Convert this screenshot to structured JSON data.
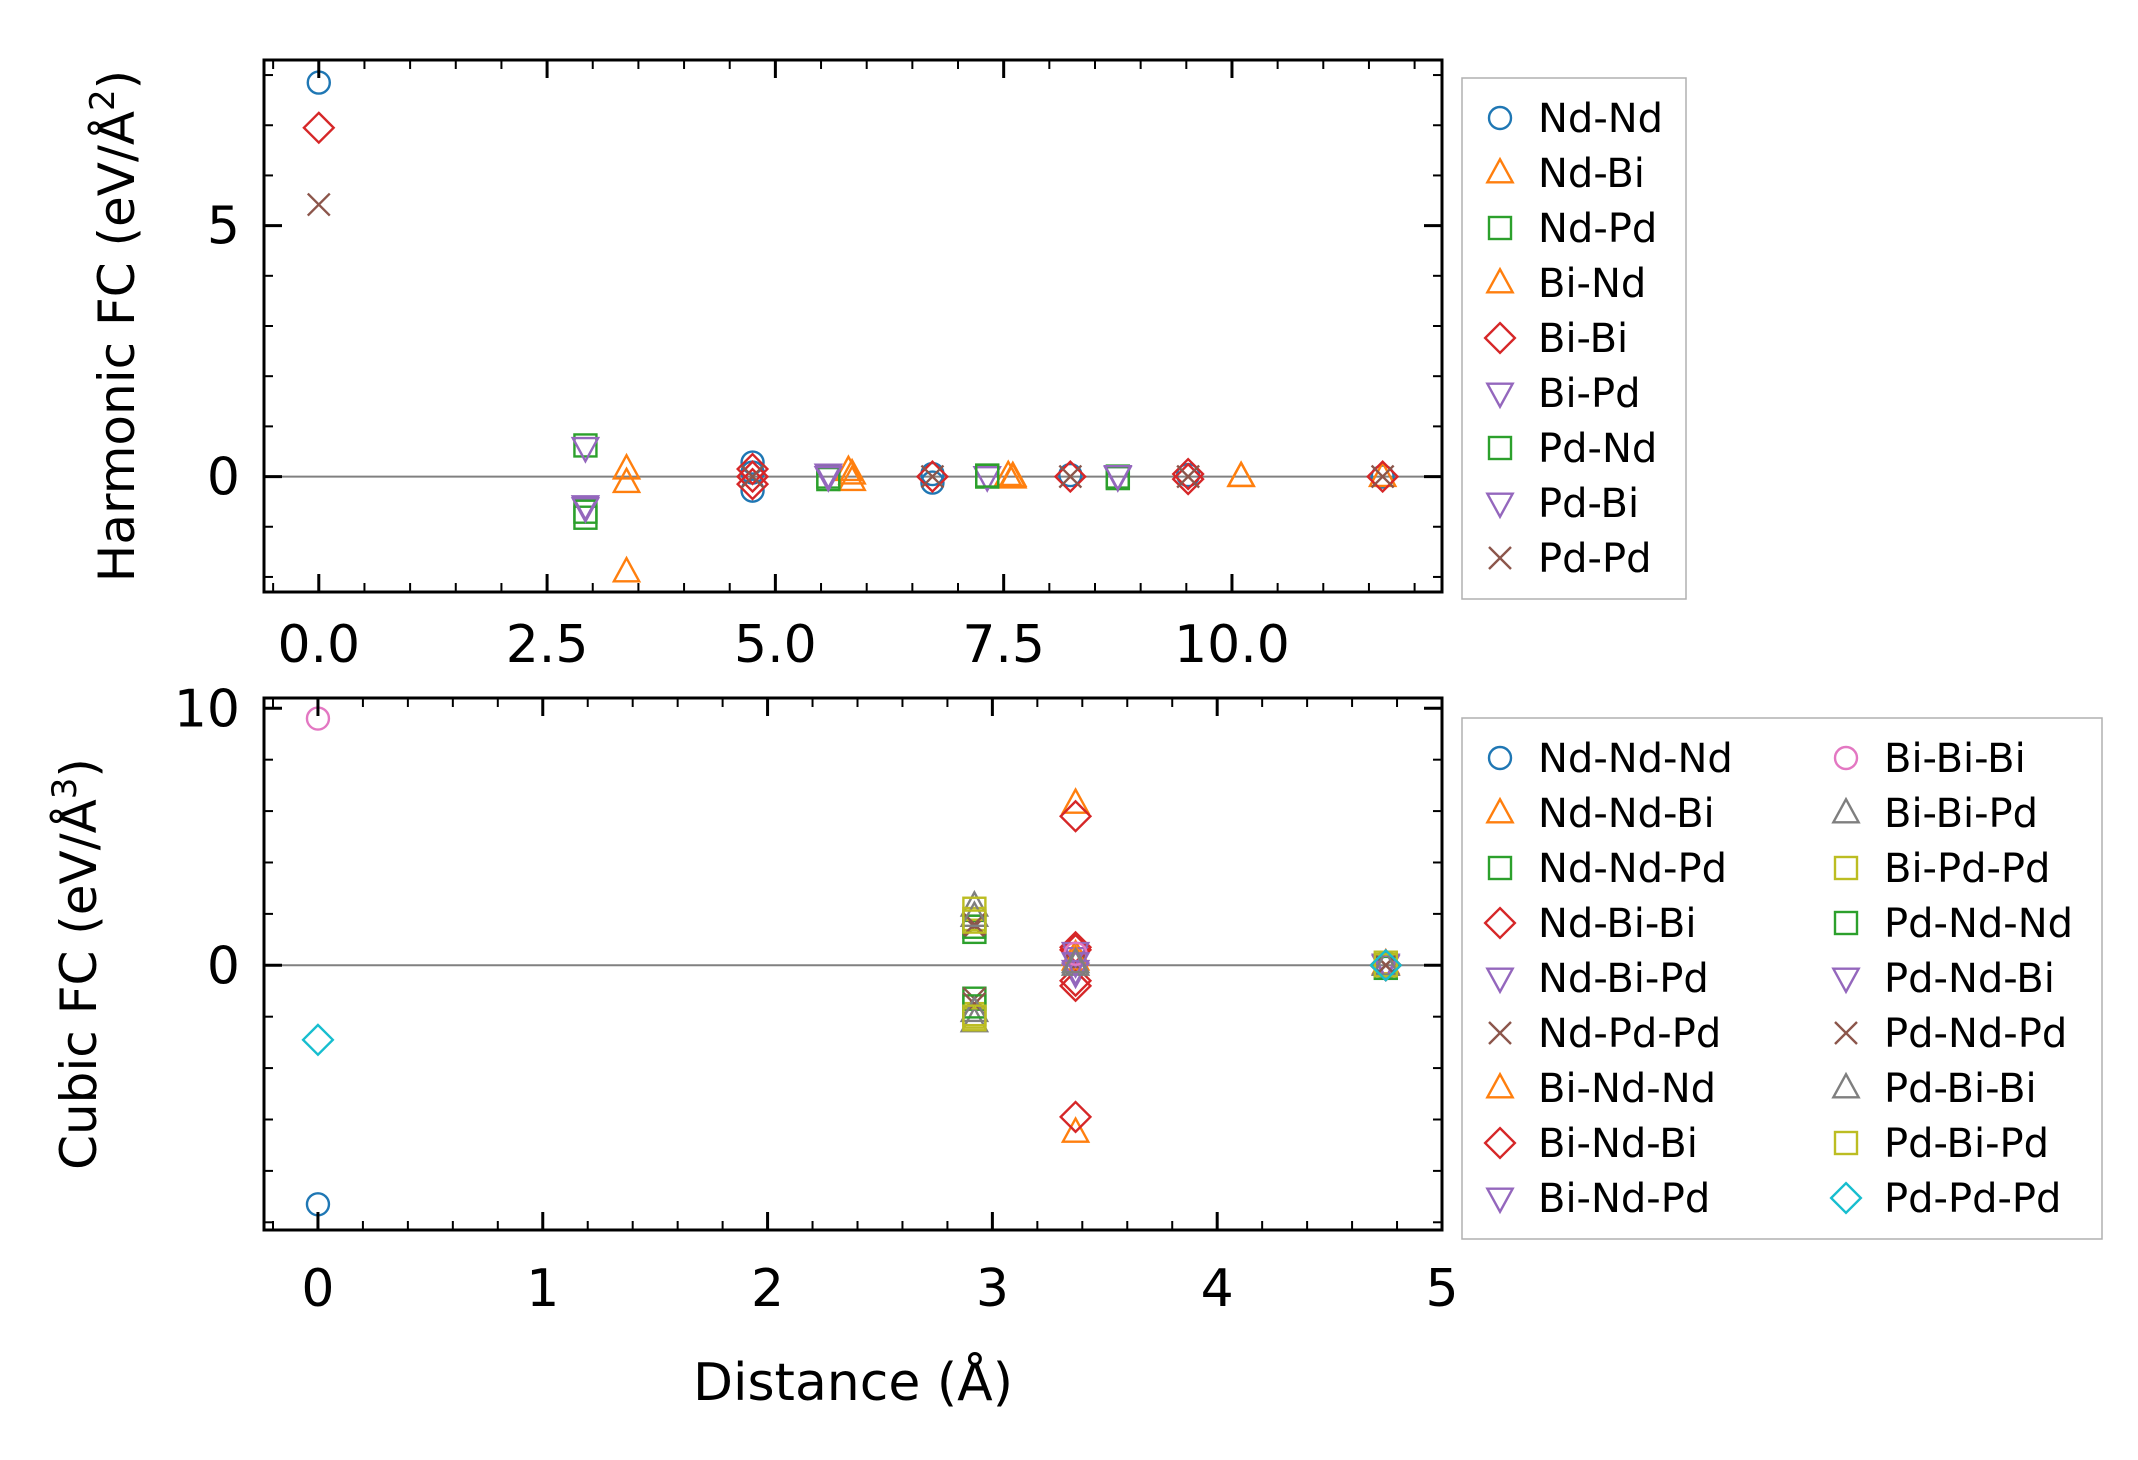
{
  "colors": {
    "blue": "#1f77b4",
    "orange": "#ff7f0e",
    "green": "#2ca02c",
    "red": "#d62728",
    "purple": "#9467bd",
    "brown": "#8c564b",
    "pink": "#e377c2",
    "gray": "#7f7f7f",
    "olive": "#bcbd22",
    "cyan": "#17becf"
  },
  "chart_data": [
    {
      "type": "scatter",
      "title": "",
      "xlabel": "",
      "ylabel": "Harmonic FC (eV/Å",
      "ylabel_exp": "2",
      "ylabel_close": ")",
      "xlim": [
        -0.6,
        12.3
      ],
      "ylim": [
        -2.3,
        8.3
      ],
      "xticks": [
        0.0,
        2.5,
        5.0,
        7.5,
        10.0
      ],
      "xtick_labels": [
        "0.0",
        "2.5",
        "5.0",
        "7.5",
        "10.0"
      ],
      "yticks": [
        0,
        5
      ],
      "ytick_labels": [
        "0",
        "5"
      ],
      "x_minor_step": 0.5,
      "y_minor_step": 1,
      "zero_line": true,
      "legend_position": "outside-right",
      "series": [
        {
          "name": "Nd-Nd",
          "marker": "circle",
          "color": "blue",
          "points": [
            [
              0,
              7.85
            ],
            [
              4.75,
              0.28
            ],
            [
              4.75,
              -0.28
            ],
            [
              4.75,
              0.08
            ],
            [
              6.72,
              -0.12
            ],
            [
              6.72,
              0.05
            ],
            [
              8.23,
              0.03
            ],
            [
              9.52,
              0.03
            ],
            [
              11.65,
              0.0
            ]
          ]
        },
        {
          "name": "Nd-Bi",
          "marker": "triangle-up",
          "color": "orange",
          "points": [
            [
              3.37,
              0.15
            ],
            [
              3.37,
              -0.12
            ],
            [
              5.8,
              0.12
            ],
            [
              5.84,
              -0.08
            ],
            [
              7.55,
              0.02
            ],
            [
              7.6,
              -0.03
            ],
            [
              10.1,
              0.0
            ],
            [
              11.65,
              0.0
            ]
          ]
        },
        {
          "name": "Nd-Pd",
          "marker": "square",
          "color": "green",
          "points": [
            [
              2.92,
              0.62
            ],
            [
              2.92,
              -0.82
            ],
            [
              5.58,
              0.0
            ],
            [
              7.32,
              0.0
            ],
            [
              8.75,
              0.0
            ]
          ]
        },
        {
          "name": "Bi-Nd",
          "marker": "triangle-up",
          "color": "orange",
          "points": [
            [
              3.37,
              -1.9
            ],
            [
              5.84,
              0.05
            ],
            [
              7.6,
              0.0
            ],
            [
              10.1,
              0.0
            ]
          ]
        },
        {
          "name": "Bi-Bi",
          "marker": "diamond",
          "color": "red",
          "points": [
            [
              0,
              6.95
            ],
            [
              4.75,
              0.15
            ],
            [
              4.75,
              -0.15
            ],
            [
              4.75,
              0.0
            ],
            [
              6.72,
              0.0
            ],
            [
              8.23,
              0.0
            ],
            [
              9.52,
              0.05
            ],
            [
              9.52,
              -0.05
            ],
            [
              11.65,
              0.0
            ]
          ]
        },
        {
          "name": "Bi-Pd",
          "marker": "triangle-down",
          "color": "purple",
          "points": [
            [
              2.92,
              0.58
            ],
            [
              2.92,
              -0.58
            ],
            [
              5.58,
              0.05
            ],
            [
              7.32,
              0.0
            ],
            [
              8.75,
              0.0
            ]
          ]
        },
        {
          "name": "Pd-Nd",
          "marker": "square",
          "color": "green",
          "points": [
            [
              2.92,
              -0.7
            ],
            [
              5.58,
              -0.05
            ],
            [
              7.32,
              0.02
            ],
            [
              8.75,
              -0.03
            ]
          ]
        },
        {
          "name": "Pd-Bi",
          "marker": "triangle-down",
          "color": "purple",
          "points": [
            [
              2.92,
              -0.62
            ],
            [
              5.58,
              0.0
            ],
            [
              8.75,
              0.02
            ]
          ]
        },
        {
          "name": "Pd-Pd",
          "marker": "x",
          "color": "brown",
          "points": [
            [
              0,
              5.42
            ],
            [
              4.75,
              0.0
            ],
            [
              6.72,
              0.0
            ],
            [
              8.23,
              0.0
            ],
            [
              9.52,
              0.0
            ],
            [
              11.65,
              0.0
            ]
          ]
        }
      ]
    },
    {
      "type": "scatter",
      "title": "",
      "xlabel": "Distance (Å)",
      "ylabel": "Cubic FC (eV/Å",
      "ylabel_exp": "3",
      "ylabel_close": ")",
      "xlim": [
        -0.24,
        5.0
      ],
      "ylim": [
        -10.3,
        10.4
      ],
      "xticks": [
        0,
        1,
        2,
        3,
        4,
        5
      ],
      "xtick_labels": [
        "0",
        "1",
        "2",
        "3",
        "4",
        "5"
      ],
      "yticks": [
        0,
        10
      ],
      "ytick_labels": [
        "0",
        "10"
      ],
      "x_minor_step": 0.2,
      "y_minor_step": 2,
      "zero_line": true,
      "legend_position": "outside-right",
      "series": [
        {
          "name": "Nd-Nd-Nd",
          "marker": "circle",
          "color": "blue",
          "points": [
            [
              0,
              -9.3
            ],
            [
              4.75,
              0.1
            ],
            [
              4.75,
              -0.1
            ]
          ]
        },
        {
          "name": "Nd-Nd-Bi",
          "marker": "triangle-up",
          "color": "orange",
          "points": [
            [
              3.37,
              6.3
            ],
            [
              3.37,
              -6.5
            ],
            [
              3.37,
              0.4
            ],
            [
              4.75,
              0.05
            ]
          ]
        },
        {
          "name": "Nd-Nd-Pd",
          "marker": "square",
          "color": "green",
          "points": [
            [
              2.92,
              1.3
            ],
            [
              2.92,
              -1.3
            ],
            [
              4.75,
              0.0
            ]
          ]
        },
        {
          "name": "Nd-Bi-Bi",
          "marker": "diamond",
          "color": "red",
          "points": [
            [
              3.37,
              5.8
            ],
            [
              3.37,
              -5.9
            ],
            [
              3.37,
              0.6
            ],
            [
              3.37,
              -0.6
            ],
            [
              4.75,
              0.0
            ]
          ]
        },
        {
          "name": "Nd-Bi-Pd",
          "marker": "triangle-down",
          "color": "purple",
          "points": [
            [
              3.37,
              0.3
            ],
            [
              3.37,
              -0.3
            ],
            [
              4.75,
              0.05
            ]
          ]
        },
        {
          "name": "Nd-Pd-Pd",
          "marker": "x",
          "color": "brown",
          "points": [
            [
              2.92,
              1.5
            ],
            [
              2.92,
              -1.3
            ],
            [
              3.37,
              0.0
            ],
            [
              4.75,
              0.0
            ]
          ]
        },
        {
          "name": "Bi-Nd-Nd",
          "marker": "triangle-up",
          "color": "orange",
          "points": [
            [
              3.37,
              0.2
            ],
            [
              4.75,
              0.0
            ]
          ]
        },
        {
          "name": "Bi-Nd-Bi",
          "marker": "diamond",
          "color": "red",
          "points": [
            [
              3.37,
              0.7
            ],
            [
              3.37,
              -0.8
            ],
            [
              4.75,
              0.0
            ]
          ]
        },
        {
          "name": "Bi-Nd-Pd",
          "marker": "triangle-down",
          "color": "purple",
          "points": [
            [
              3.37,
              0.5
            ],
            [
              3.37,
              -0.2
            ],
            [
              4.75,
              0.0
            ]
          ]
        },
        {
          "name": "Bi-Bi-Bi",
          "marker": "circle",
          "color": "pink",
          "points": [
            [
              0,
              9.6
            ],
            [
              3.37,
              0.45
            ],
            [
              4.75,
              0.0
            ]
          ]
        },
        {
          "name": "Bi-Bi-Pd",
          "marker": "triangle-up",
          "color": "gray",
          "points": [
            [
              2.92,
              2.3
            ],
            [
              2.92,
              -2.2
            ],
            [
              3.37,
              0.0
            ],
            [
              4.75,
              0.0
            ]
          ]
        },
        {
          "name": "Bi-Pd-Pd",
          "marker": "square",
          "color": "olive",
          "points": [
            [
              2.92,
              2.2
            ],
            [
              2.92,
              1.8
            ],
            [
              2.92,
              -1.9
            ],
            [
              2.92,
              -2.1
            ],
            [
              4.75,
              0.1
            ]
          ]
        },
        {
          "name": "Pd-Nd-Nd",
          "marker": "square",
          "color": "green",
          "points": [
            [
              2.92,
              1.5
            ],
            [
              2.92,
              -1.6
            ],
            [
              4.75,
              -0.1
            ]
          ]
        },
        {
          "name": "Pd-Nd-Bi",
          "marker": "triangle-down",
          "color": "purple",
          "points": [
            [
              3.37,
              0.1
            ],
            [
              4.75,
              0.0
            ]
          ]
        },
        {
          "name": "Pd-Nd-Pd",
          "marker": "x",
          "color": "brown",
          "points": [
            [
              2.92,
              1.6
            ],
            [
              2.92,
              -1.5
            ],
            [
              4.75,
              0.0
            ]
          ]
        },
        {
          "name": "Pd-Bi-Bi",
          "marker": "triangle-up",
          "color": "gray",
          "points": [
            [
              2.92,
              1.9
            ],
            [
              2.92,
              -1.8
            ],
            [
              3.37,
              0.1
            ],
            [
              4.75,
              0.0
            ]
          ]
        },
        {
          "name": "Pd-Bi-Pd",
          "marker": "square",
          "color": "olive",
          "points": [
            [
              2.92,
              1.7
            ],
            [
              2.92,
              -2.0
            ],
            [
              4.75,
              0.0
            ]
          ]
        },
        {
          "name": "Pd-Pd-Pd",
          "marker": "diamond",
          "color": "cyan",
          "points": [
            [
              0,
              -2.9
            ],
            [
              4.75,
              0.0
            ]
          ]
        }
      ]
    }
  ]
}
